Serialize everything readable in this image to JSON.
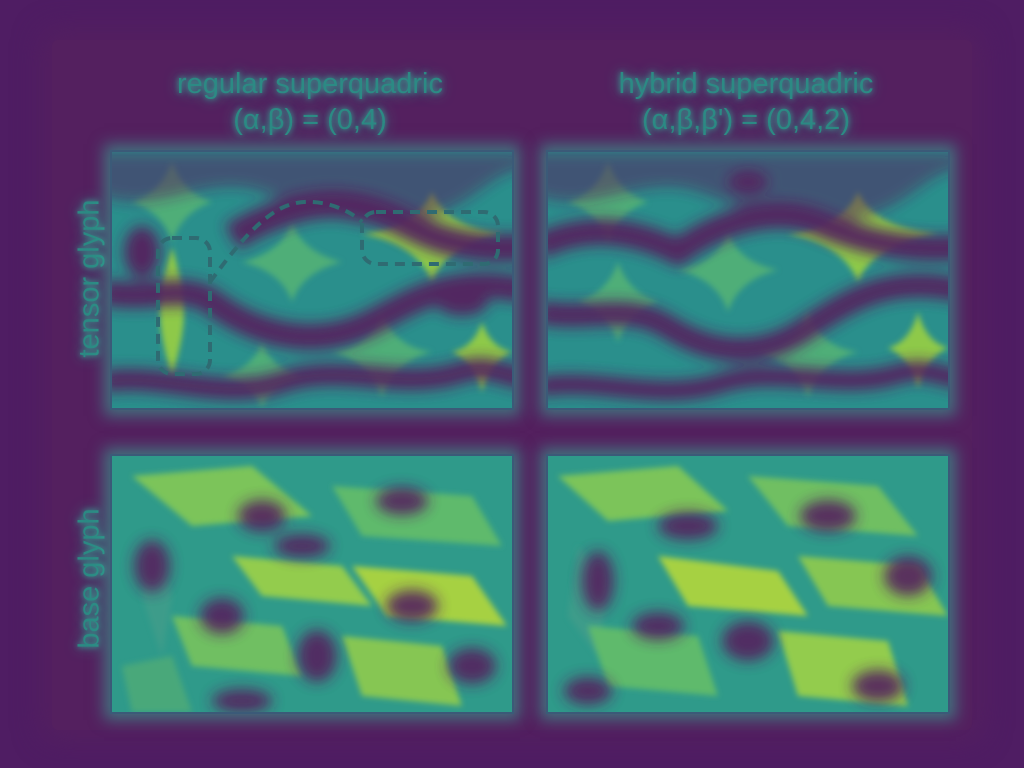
{
  "columns": {
    "left": {
      "title_line1": "regular superquadric",
      "title_line2": "(α,β) = (0,4)"
    },
    "right": {
      "title_line1": "hybrid superquadric",
      "title_line2": "(α,β,β') = (0,4,2)"
    }
  },
  "rows": {
    "top": {
      "label": "tensor glyph"
    },
    "bottom": {
      "label": "base glyph"
    }
  },
  "colors": {
    "background": "#4f1d63",
    "dark": "#54205f",
    "teal": "#2a8f8c",
    "green": "#5ec46a",
    "yellow": "#a9d540",
    "outline": "#3b5a78",
    "highlight_dash": "#2f6b72"
  }
}
